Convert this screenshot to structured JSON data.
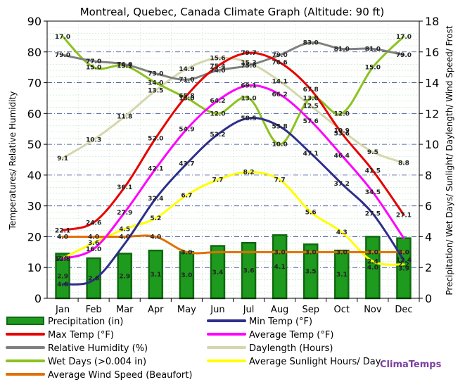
{
  "chart_data": {
    "type": "bar+line",
    "title": "Montreal, Quebec, Canada Climate Graph (Altitude: 90 ft)",
    "categories": [
      "Jan",
      "Feb",
      "Mar",
      "Apr",
      "May",
      "Jun",
      "Jul",
      "Aug",
      "Sep",
      "Oct",
      "Nov",
      "Dec"
    ],
    "ylabel_left": "Temperatures/ Relative Humidity",
    "ylabel_right": "Precipitation/ Wet Days/ Sunlight/ Daylength/ Wind Speed/ Frost",
    "ylim_left": [
      0,
      90
    ],
    "ylim_right": [
      0,
      18
    ],
    "yticks_left": [
      "0",
      "10",
      "20",
      "30",
      "40",
      "50",
      "60",
      "70",
      "80",
      "90"
    ],
    "yticks_right": [
      "0",
      "2",
      "4",
      "6",
      "8",
      "10",
      "12",
      "14",
      "16",
      "18"
    ],
    "bars": {
      "name": "Precipitation (in)",
      "axis": "right",
      "color": "#1e9b1e",
      "values": [
        2.9,
        2.6,
        2.9,
        3.1,
        3.0,
        3.4,
        3.6,
        4.1,
        3.5,
        3.1,
        4.0,
        3.9
      ],
      "labels": [
        "2.9",
        "2.6",
        "2.9",
        "3.1",
        "3.0",
        "3.4",
        "3.6",
        "4.1",
        "3.5",
        "3.1",
        "4.0",
        "3.9"
      ]
    },
    "series": [
      {
        "name": "Max Temp (°F)",
        "axis": "left",
        "color": "#e80000",
        "values": [
          22.1,
          24.6,
          36.1,
          52.0,
          65.8,
          75.4,
          79.7,
          76.6,
          67.8,
          53.6,
          41.5,
          27.1
        ],
        "labels": [
          "22.1",
          "24.6",
          "36.1",
          "52.0",
          "65.8",
          "75.4",
          "79.7",
          "76.6",
          "67.8",
          "53.6",
          "41.5",
          "27.1"
        ]
      },
      {
        "name": "Min Temp (°F)",
        "axis": "left",
        "color": "#2e2e8c",
        "values": [
          4.6,
          5.9,
          17.7,
          32.4,
          43.7,
          53.2,
          58.5,
          55.8,
          47.1,
          37.2,
          27.5,
          12.4
        ],
        "labels": [
          "4.6",
          "",
          "",
          "32.4",
          "43.7",
          "53.2",
          "58.5",
          "55.8",
          "47.1",
          "37.2",
          "27.5",
          "12.4"
        ]
      },
      {
        "name": "Average Temp (°F)",
        "axis": "left",
        "color": "#ff00ff",
        "values": [
          12.8,
          16.0,
          27.9,
          42.1,
          54.9,
          64.2,
          69.1,
          66.2,
          57.6,
          46.4,
          34.5,
          19.5
        ],
        "labels": [
          "12.8",
          "16.0",
          "27.9",
          "42.1",
          "54.9",
          "64.2",
          "69.1",
          "66.2",
          "57.6",
          "46.4",
          "34.5",
          ""
        ]
      },
      {
        "name": "Relative Humidity (%)",
        "axis": "left",
        "color": "#808080",
        "values": [
          79.0,
          77.0,
          76.0,
          73.0,
          71.0,
          74.0,
          75.6,
          79.0,
          83.0,
          81.0,
          81.0,
          79.0
        ],
        "labels": [
          "79.0",
          "77.0",
          "76.0",
          "73.0",
          "71.0",
          "74.0",
          "75.6",
          "79.0",
          "83.0",
          "81.0",
          "81.0",
          "79.0"
        ]
      },
      {
        "name": "Daylength (Hours)",
        "axis": "right",
        "color": "#d6d6ad",
        "values": [
          9.1,
          10.3,
          11.8,
          13.5,
          14.9,
          15.6,
          15.3,
          14.1,
          12.5,
          10.9,
          9.5,
          8.8
        ],
        "labels": [
          "9.1",
          "10.3",
          "11.8",
          "13.5",
          "14.9",
          "15.6",
          "15.3",
          "14.1",
          "12.5",
          "10.9",
          "9.5",
          "8.8"
        ]
      },
      {
        "name": "Wet Days (>0.004 in)",
        "axis": "right",
        "color": "#8cc21f",
        "values": [
          17.0,
          15.0,
          15.1,
          14.0,
          13.0,
          12.0,
          13.0,
          10.0,
          13.0,
          12.0,
          15.0,
          17.0
        ],
        "labels": [
          "17.0",
          "15.0",
          "15.1",
          "14.0",
          "13.0",
          "12.0",
          "13.0",
          "10.0",
          "13.0",
          "12.0",
          "15.0",
          "17.0"
        ]
      },
      {
        "name": "Average Sunlight Hours/ Day",
        "axis": "right",
        "color": "#ffff00",
        "values": [
          2.6,
          3.6,
          4.5,
          5.2,
          6.7,
          7.7,
          8.2,
          7.7,
          5.6,
          4.3,
          2.4,
          2.2
        ],
        "labels": [
          "2.6",
          "3.6",
          "4.5",
          "5.2",
          "6.7",
          "7.7",
          "8.2",
          "7.7",
          "5.6",
          "4.3",
          "2.4",
          "2.2"
        ]
      },
      {
        "name": "Average Wind Speed (Beaufort)",
        "axis": "right",
        "color": "#e07000",
        "values": [
          4.0,
          4.0,
          4.0,
          4.0,
          3.0,
          3.0,
          3.0,
          3.0,
          3.0,
          3.0,
          3.0,
          3.0
        ],
        "labels": [
          "4.0",
          "4.0",
          "4.0",
          "4.0",
          "3.0",
          "",
          "",
          "3.0",
          "3.0",
          "3.0",
          "3.0",
          "3.0"
        ]
      }
    ],
    "legend": [
      "Precipitation (in)",
      "Min Temp (°F)",
      "Max Temp (°F)",
      "Average Temp (°F)",
      "Relative Humidity (%)",
      "Daylength (Hours)",
      "Wet Days (>0.004 in)",
      "Average Sunlight Hours/ Day",
      "Average Wind Speed (Beaufort)"
    ],
    "legend_placement": "bottom",
    "grid": true,
    "watermark": "ClimaTemps"
  }
}
